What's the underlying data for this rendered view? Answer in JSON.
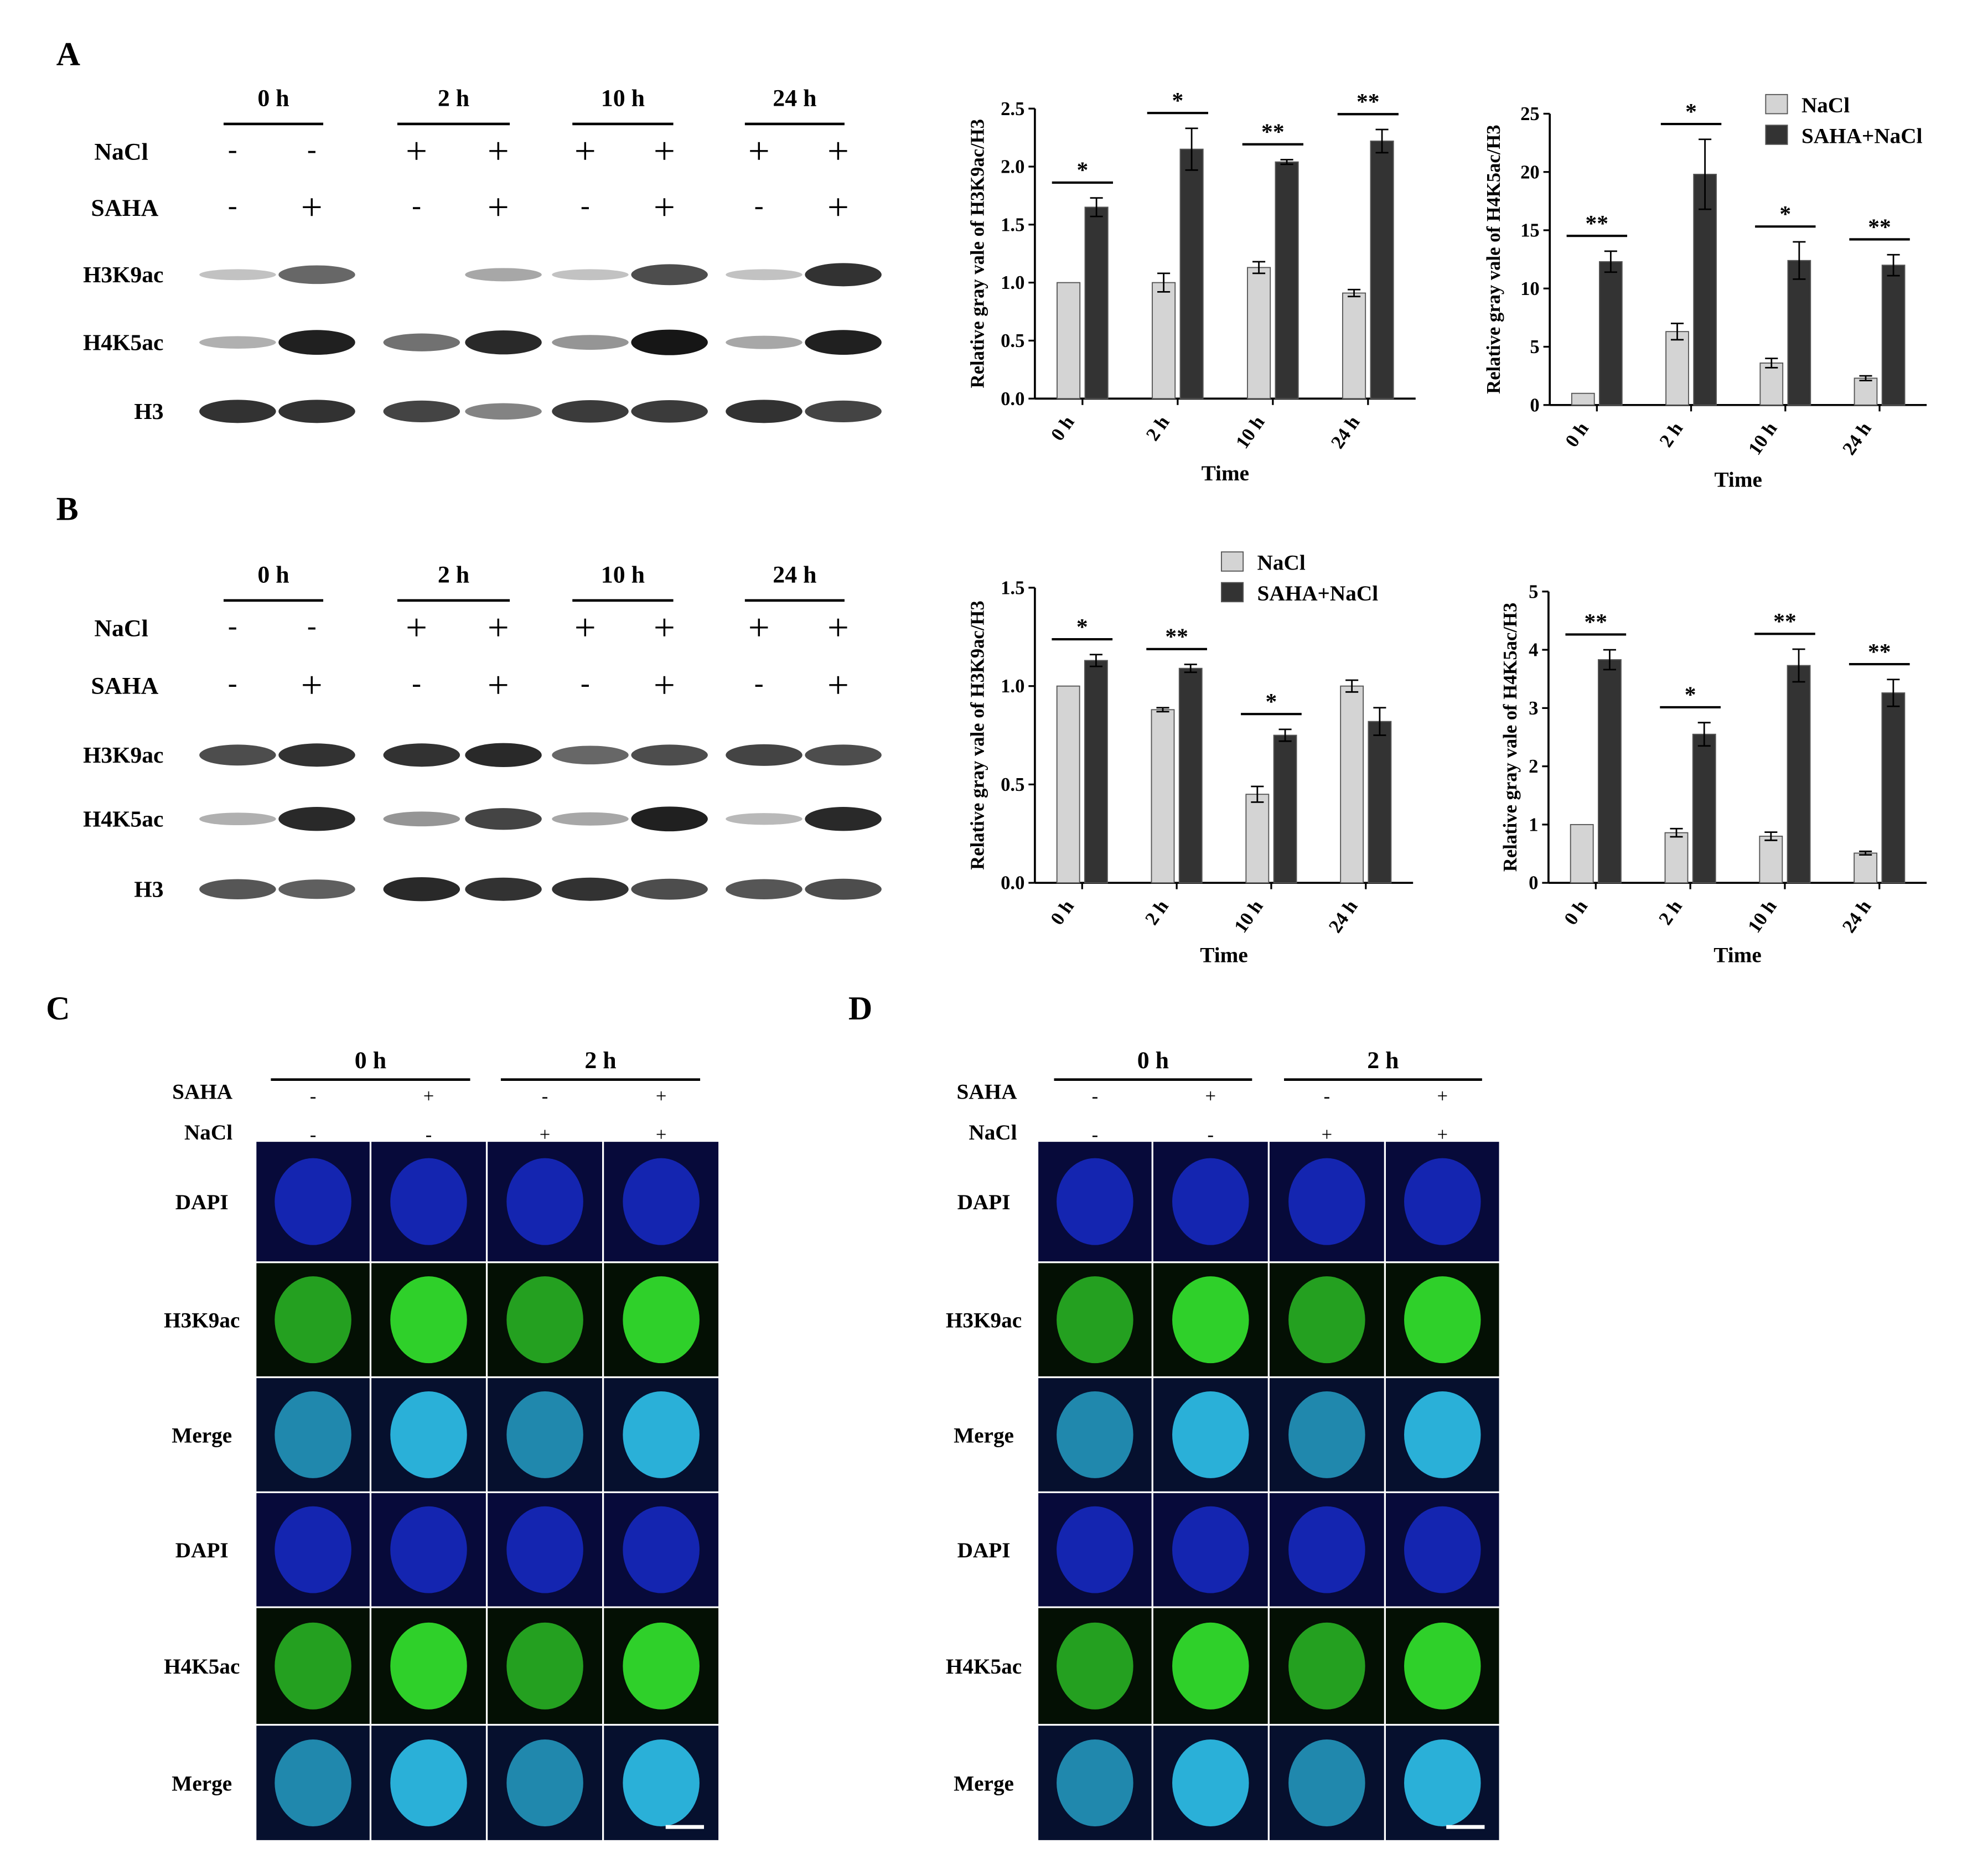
{
  "panel_labels": [
    "A",
    "B",
    "C",
    "D"
  ],
  "blot": {
    "timepoints": [
      "0 h",
      "2 h",
      "10 h",
      "24 h"
    ],
    "row_labels": {
      "nacl": "NaCl",
      "saha": "SAHA"
    },
    "nacl_signs": [
      "-",
      "-",
      "+",
      "+",
      "+",
      "+",
      "+",
      "+"
    ],
    "saha_signs": [
      "-",
      "+",
      "-",
      "+",
      "-",
      "+",
      "-",
      "+"
    ],
    "proteins": [
      "H3K9ac",
      "H4K5ac",
      "H3"
    ]
  },
  "if": {
    "timepoints": [
      "0 h",
      "2 h"
    ],
    "saha_label": "SAHA",
    "nacl_label": "NaCl",
    "saha_signs": [
      "-",
      "+",
      "-",
      "+"
    ],
    "nacl_signs": [
      "-",
      "-",
      "+",
      "+"
    ],
    "rows": [
      "DAPI",
      "H3K9ac",
      "Merge",
      "DAPI",
      "H4K5ac",
      "Merge"
    ],
    "colors": {
      "dapi": "#1a2fd8",
      "green": "#2fd02a",
      "merge": "#2ab0d8"
    }
  },
  "legend": [
    "NaCl",
    "SAHA+NaCl"
  ],
  "colors": {
    "nacl": "#d4d4d4",
    "saha_nacl": "#333333"
  },
  "chart_data": [
    {
      "type": "bar",
      "panel": "A",
      "categories": [
        "0 h",
        "2 h",
        "10 h",
        "24 h"
      ],
      "xlabel": "Time",
      "ylabel": "Relative gray vale of H3K9ac/H3",
      "ylim": [
        0,
        2.5
      ],
      "yticks": [
        0.0,
        0.5,
        1.0,
        1.5,
        2.0,
        2.5
      ],
      "series": [
        {
          "name": "NaCl",
          "values": [
            1.0,
            1.0,
            1.13,
            0.91
          ],
          "errors": [
            0,
            0.08,
            0.05,
            0.03
          ]
        },
        {
          "name": "SAHA+NaCl",
          "values": [
            1.65,
            2.15,
            2.04,
            2.22
          ],
          "errors": [
            0.08,
            0.18,
            0.02,
            0.1
          ]
        }
      ],
      "significance": [
        "*",
        "*",
        "**",
        "**"
      ]
    },
    {
      "type": "bar",
      "panel": "A",
      "categories": [
        "0 h",
        "2 h",
        "10 h",
        "24 h"
      ],
      "xlabel": "Time",
      "ylabel": "Relative gray vale of H4K5ac/H3",
      "ylim": [
        0,
        25
      ],
      "yticks": [
        0,
        5,
        10,
        15,
        20,
        25
      ],
      "series": [
        {
          "name": "NaCl",
          "values": [
            1.0,
            6.3,
            3.6,
            2.3
          ],
          "errors": [
            0,
            0.7,
            0.4,
            0.2
          ]
        },
        {
          "name": "SAHA+NaCl",
          "values": [
            12.3,
            19.8,
            12.4,
            12.0
          ],
          "errors": [
            0.9,
            3.0,
            1.6,
            0.9
          ]
        }
      ],
      "significance": [
        "**",
        "*",
        "*",
        "**"
      ],
      "legend_position": "top-right"
    },
    {
      "type": "bar",
      "panel": "B",
      "categories": [
        "0 h",
        "2 h",
        "10 h",
        "24 h"
      ],
      "xlabel": "Time",
      "ylabel": "Relative gray vale of H3K9ac/H3",
      "ylim": [
        0,
        1.5
      ],
      "yticks": [
        0.0,
        0.5,
        1.0,
        1.5
      ],
      "series": [
        {
          "name": "NaCl",
          "values": [
            1.0,
            0.88,
            0.45,
            1.0
          ],
          "errors": [
            0,
            0.01,
            0.04,
            0.03
          ]
        },
        {
          "name": "SAHA+NaCl",
          "values": [
            1.13,
            1.09,
            0.75,
            0.82
          ],
          "errors": [
            0.03,
            0.02,
            0.03,
            0.07
          ]
        }
      ],
      "significance": [
        "*",
        "**",
        "*",
        ""
      ],
      "legend_position": "top-right"
    },
    {
      "type": "bar",
      "panel": "B",
      "categories": [
        "0 h",
        "2 h",
        "10 h",
        "24 h"
      ],
      "xlabel": "Time",
      "ylabel": "Relative gray vale of H4K5ac/H3",
      "ylim": [
        0,
        5
      ],
      "yticks": [
        0,
        1,
        2,
        3,
        4,
        5
      ],
      "series": [
        {
          "name": "NaCl",
          "values": [
            1.0,
            0.86,
            0.8,
            0.51
          ],
          "errors": [
            0,
            0.07,
            0.07,
            0.03
          ]
        },
        {
          "name": "SAHA+NaCl",
          "values": [
            3.83,
            2.55,
            3.73,
            3.26
          ],
          "errors": [
            0.17,
            0.2,
            0.28,
            0.23
          ]
        }
      ],
      "significance": [
        "**",
        "*",
        "**",
        "**"
      ]
    }
  ]
}
